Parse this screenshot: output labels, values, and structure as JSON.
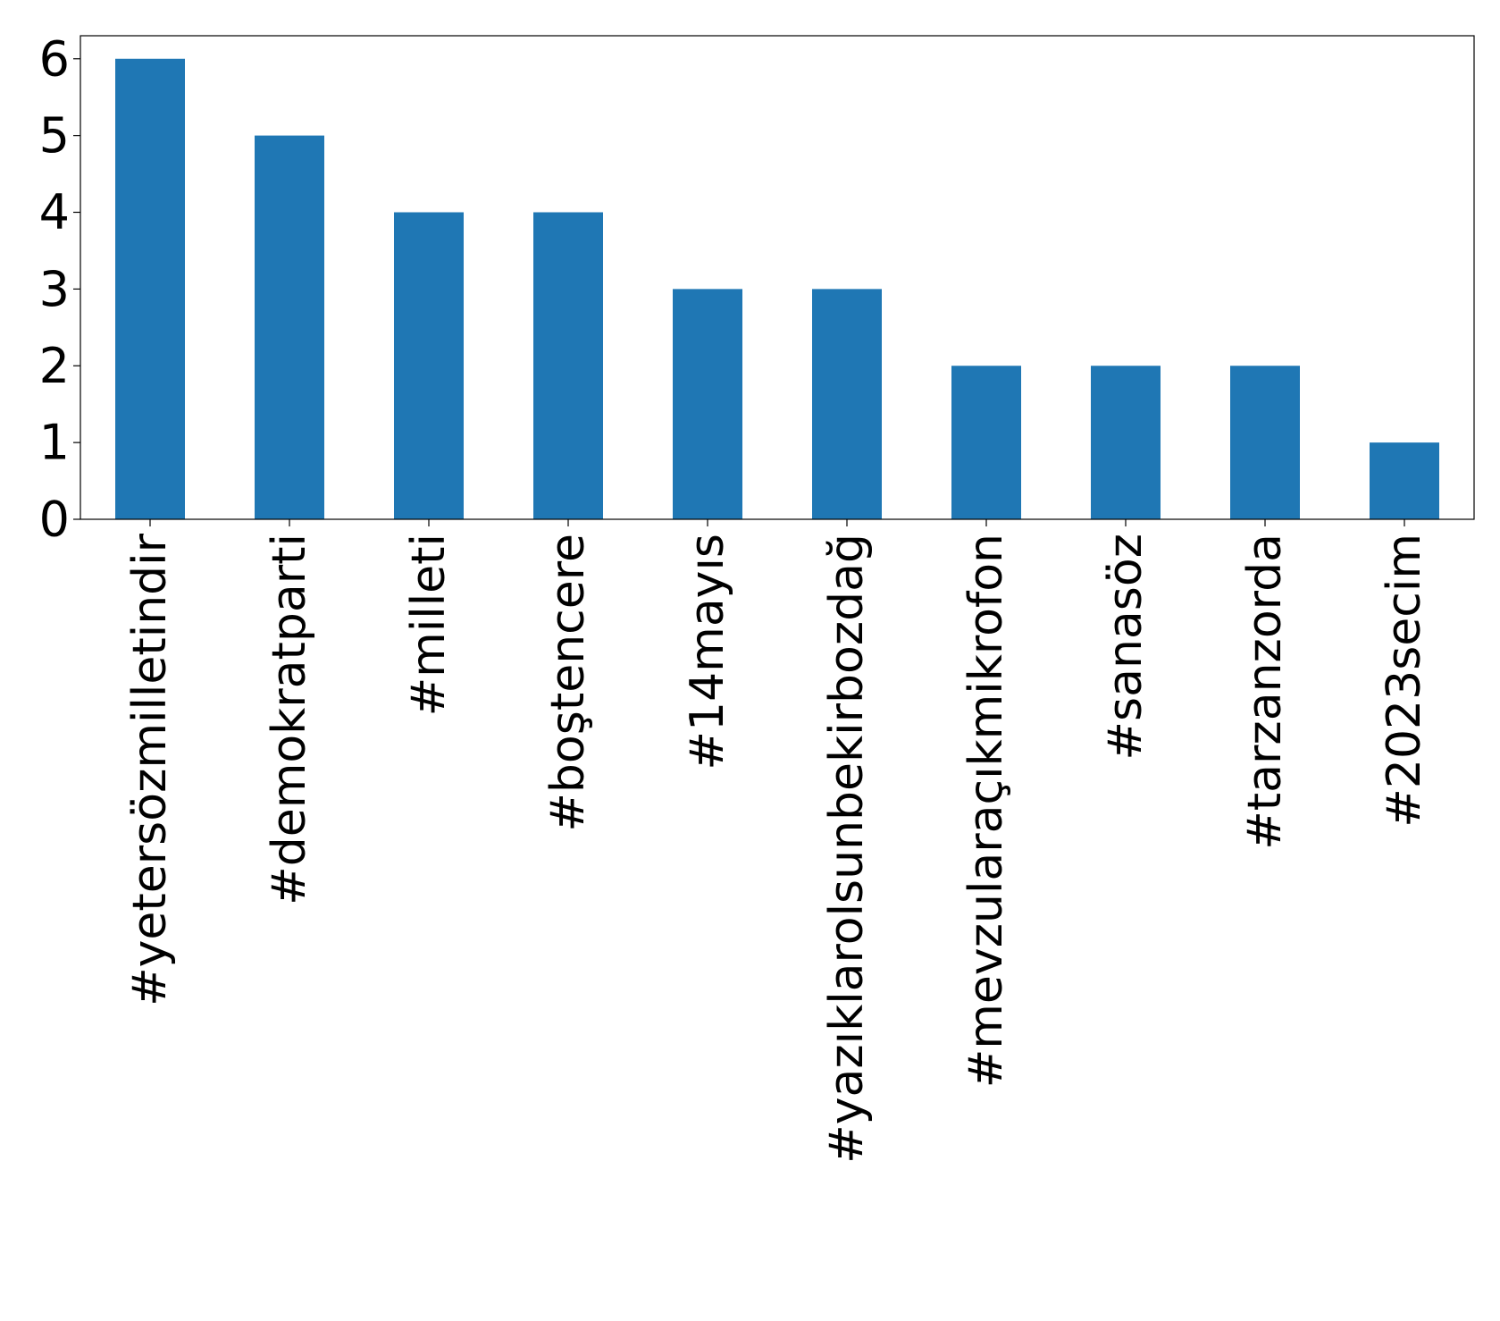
{
  "chart_data": {
    "type": "bar",
    "title": "",
    "xlabel": "",
    "ylabel": "",
    "categories": [
      "#yetersözmilletindir",
      "#demokratparti",
      "#milleti",
      "#boştencere",
      "#14mayıs",
      "#yazıklarolsunbekirbozdağ",
      "#mevzularaçıkmikrofon",
      "#sanasöz",
      "#tarzanzorda",
      "#2023secim"
    ],
    "values": [
      6,
      5,
      4,
      4,
      3,
      3,
      2,
      2,
      2,
      1
    ],
    "ylim": [
      0,
      6.3
    ],
    "yticks": [
      0,
      1,
      2,
      3,
      4,
      5,
      6
    ],
    "grid": false,
    "legend": "none",
    "colors": {
      "bar": "#1f77b4",
      "axis": "#000000"
    }
  }
}
